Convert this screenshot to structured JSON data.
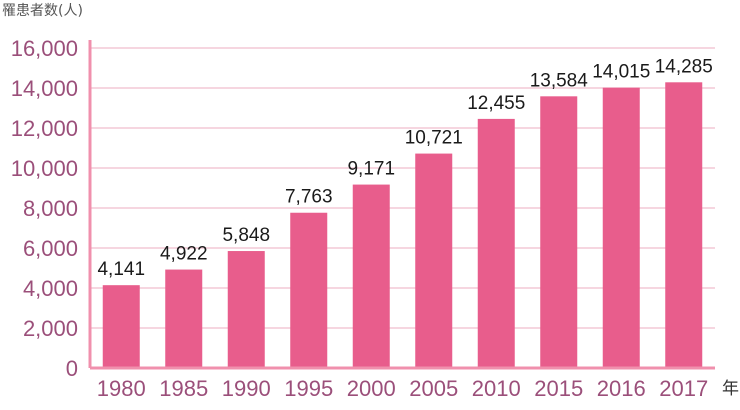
{
  "chart_data": {
    "type": "bar",
    "ylabel": "罹患者数(人)",
    "xlabel": "年",
    "categories": [
      "1980",
      "1985",
      "1990",
      "1995",
      "2000",
      "2005",
      "2010",
      "2015",
      "2016",
      "2017"
    ],
    "values": [
      4141,
      4922,
      5848,
      7763,
      9171,
      10721,
      12455,
      13584,
      14015,
      14285
    ],
    "value_labels": [
      "4,141",
      "4,922",
      "5,848",
      "7,763",
      "9,171",
      "10,721",
      "12,455",
      "13,584",
      "14,015",
      "14,285"
    ],
    "ylim": [
      0,
      16000
    ],
    "yticks": [
      "0",
      "2,000",
      "4,000",
      "6,000",
      "8,000",
      "10,000",
      "12,000",
      "14,000",
      "16,000"
    ],
    "ytick_values": [
      0,
      2000,
      4000,
      6000,
      8000,
      10000,
      12000,
      14000,
      16000
    ],
    "grid": true,
    "colors": {
      "bar": "#e85d8c",
      "grid": "#f3c9d6",
      "axis": "#f090ad",
      "tick_text": "#9b4f7a"
    }
  }
}
